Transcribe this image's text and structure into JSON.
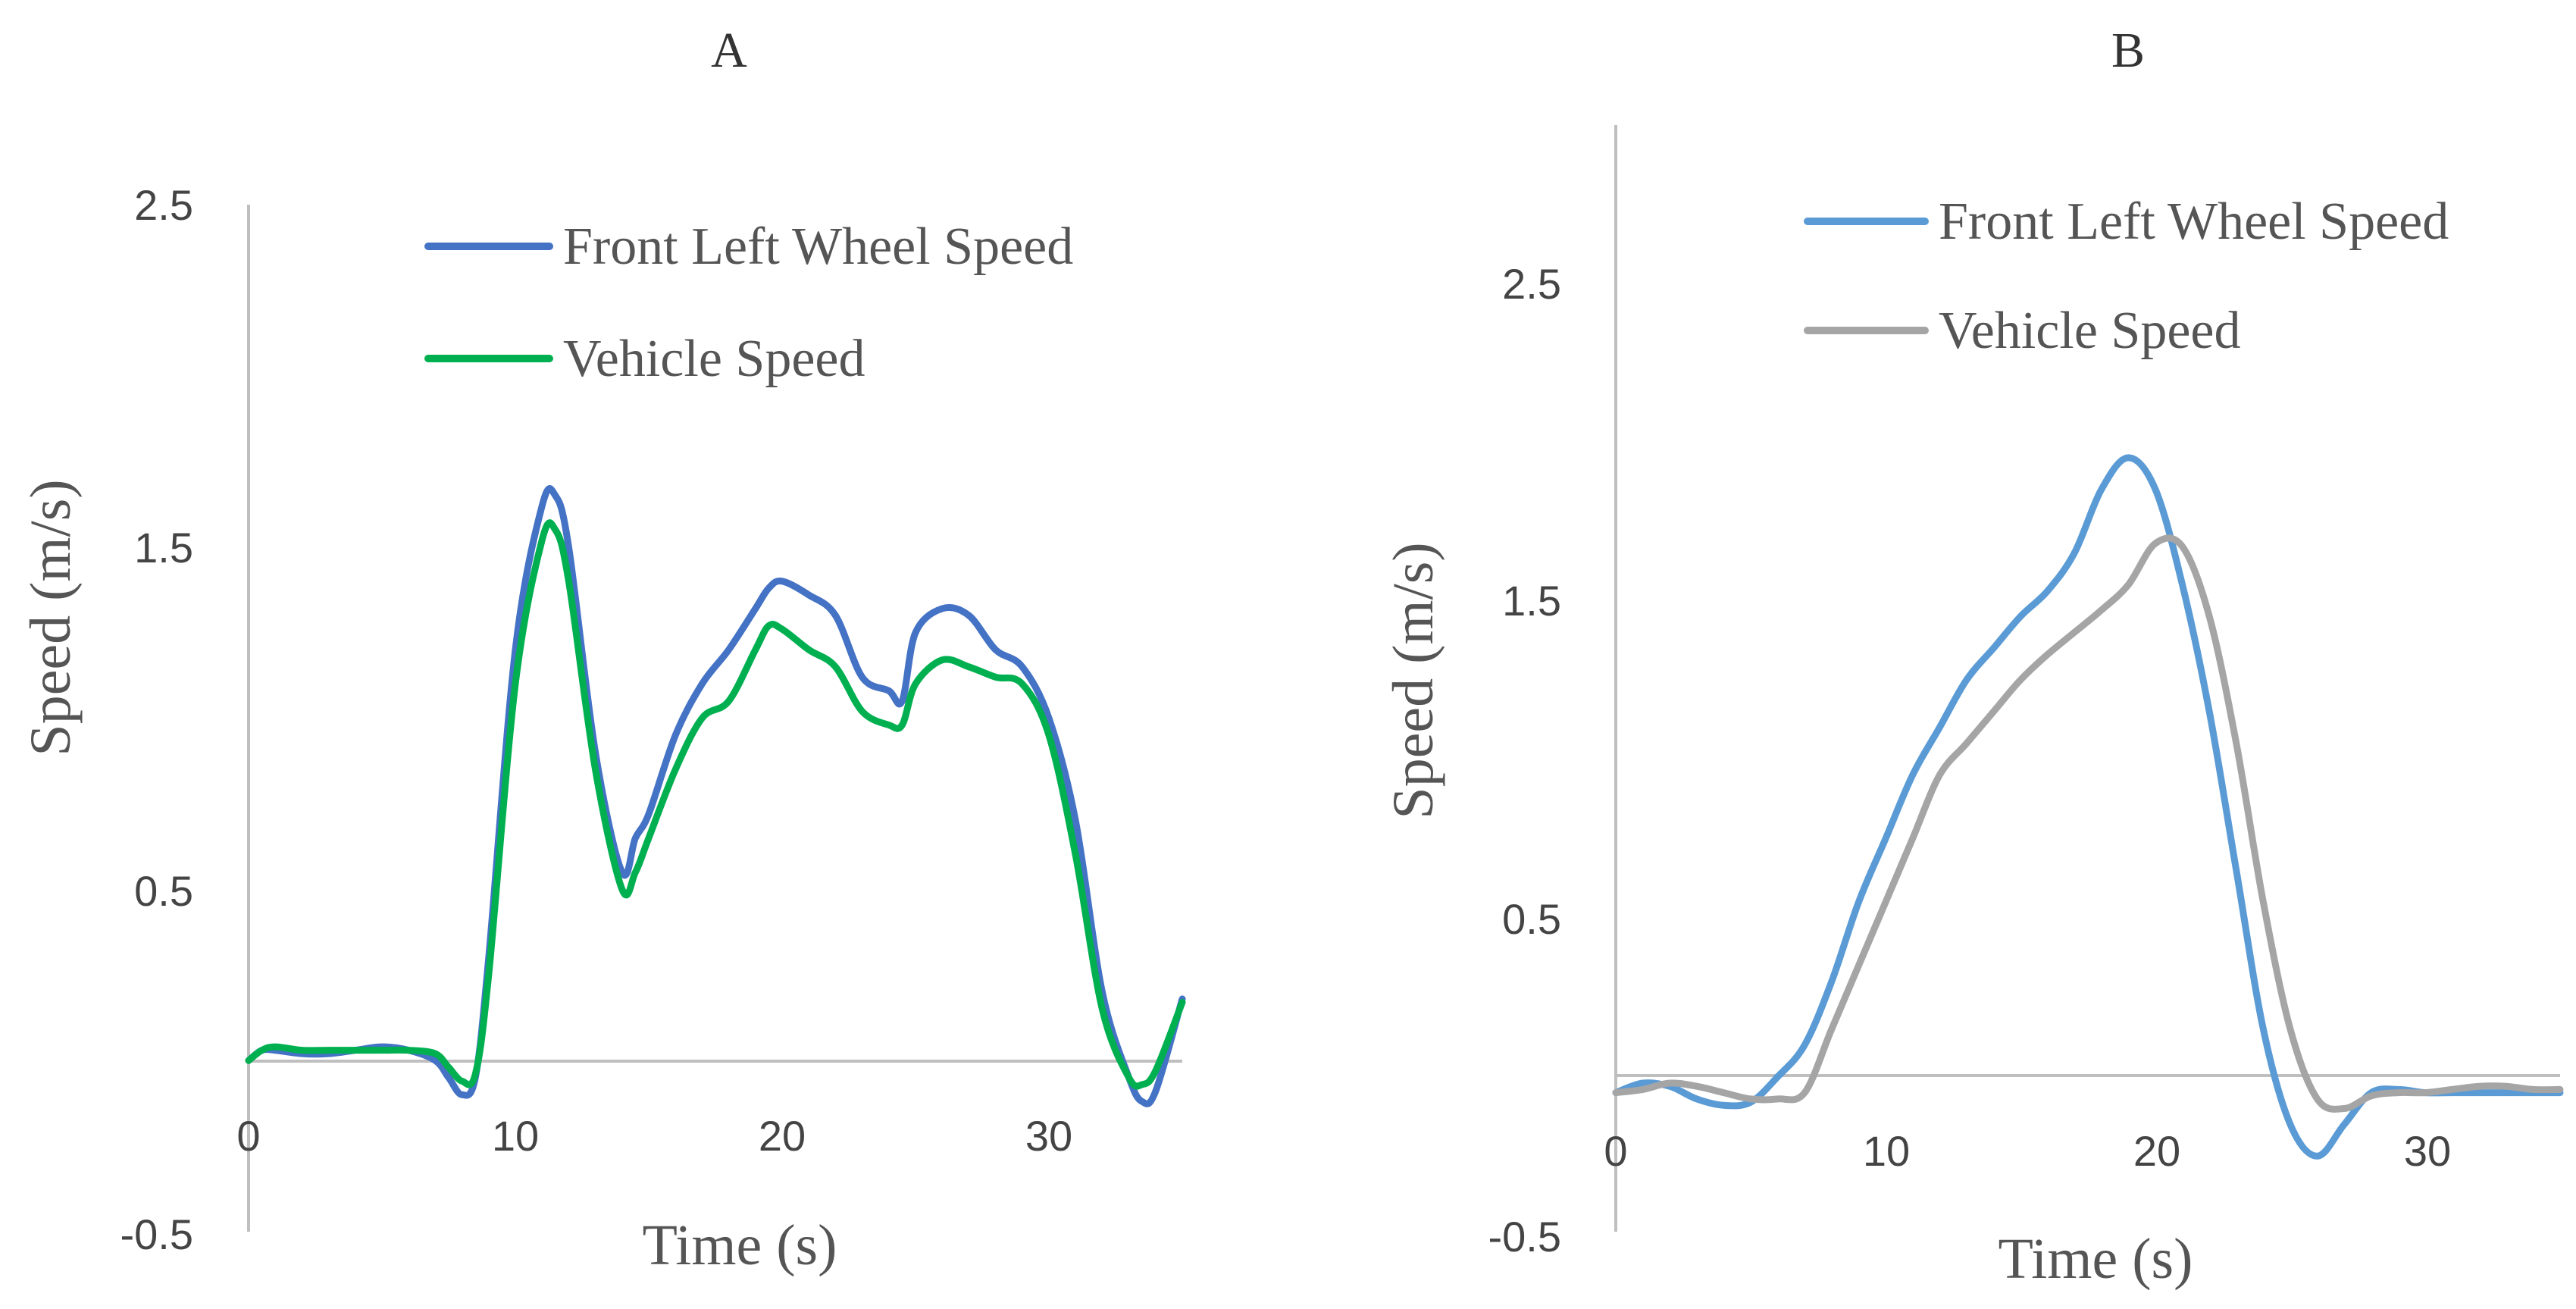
{
  "chart_data": [
    {
      "type": "line",
      "title": "A",
      "xlabel": "Time (s)",
      "ylabel": "Speed (m/s)",
      "xlim": [
        0,
        35
      ],
      "ylim": [
        -0.5,
        2.5
      ],
      "xticks": [
        "0",
        "10",
        "20",
        "30"
      ],
      "yticks": [
        "2.5",
        "1.5",
        "0.5",
        "-0.5"
      ],
      "legend_position": "top-center",
      "series": [
        {
          "name": "Front Left Wheel Speed",
          "color": "#4472C4",
          "x": [
            0,
            0.5,
            1,
            2,
            3,
            4,
            5,
            6,
            7,
            7.5,
            8,
            8.5,
            9,
            10,
            11,
            11.5,
            12,
            13,
            14,
            14.5,
            15,
            16,
            17,
            18,
            19,
            19.5,
            20,
            21,
            22,
            23,
            24,
            24.5,
            25,
            26,
            27,
            28,
            29,
            30,
            31,
            32,
            33,
            33.5,
            34,
            35
          ],
          "values": [
            0.0,
            0.03,
            0.03,
            0.02,
            0.02,
            0.03,
            0.04,
            0.03,
            0.0,
            -0.05,
            -0.1,
            -0.05,
            0.3,
            1.2,
            1.62,
            1.65,
            1.5,
            0.9,
            0.55,
            0.65,
            0.72,
            0.95,
            1.1,
            1.2,
            1.32,
            1.38,
            1.4,
            1.36,
            1.3,
            1.12,
            1.08,
            1.05,
            1.25,
            1.32,
            1.3,
            1.2,
            1.15,
            1.0,
            0.7,
            0.2,
            -0.05,
            -0.12,
            -0.09,
            0.18
          ]
        },
        {
          "name": "Vehicle Speed",
          "color": "#00B050",
          "x": [
            0,
            0.5,
            1,
            2,
            3,
            4,
            5,
            6,
            7,
            7.5,
            8,
            8.5,
            9,
            10,
            11,
            11.5,
            12,
            13,
            14,
            14.5,
            15,
            16,
            17,
            18,
            19,
            19.5,
            20,
            21,
            22,
            23,
            24,
            24.5,
            25,
            26,
            27,
            28,
            29,
            30,
            31,
            32,
            33,
            33.5,
            34,
            35
          ],
          "values": [
            0.0,
            0.03,
            0.04,
            0.03,
            0.03,
            0.03,
            0.03,
            0.03,
            0.02,
            -0.02,
            -0.06,
            -0.04,
            0.25,
            1.1,
            1.52,
            1.55,
            1.4,
            0.85,
            0.5,
            0.55,
            0.65,
            0.85,
            1.0,
            1.05,
            1.2,
            1.27,
            1.26,
            1.2,
            1.15,
            1.02,
            0.98,
            0.98,
            1.1,
            1.17,
            1.15,
            1.12,
            1.1,
            0.95,
            0.6,
            0.15,
            -0.05,
            -0.07,
            -0.03,
            0.17
          ]
        }
      ]
    },
    {
      "type": "line",
      "title": "B",
      "xlabel": "Time (s)",
      "ylabel": "Speed (m/s)",
      "xlim": [
        0,
        35
      ],
      "ylim": [
        -0.5,
        3.0
      ],
      "xticks": [
        "0",
        "10",
        "20",
        "30"
      ],
      "yticks": [
        "2.5",
        "1.5",
        "0.5",
        "-0.5"
      ],
      "legend_position": "top-center",
      "series": [
        {
          "name": "Front Left Wheel Speed",
          "color": "#5B9BD5",
          "x": [
            0,
            1,
            2,
            3,
            4,
            5,
            6,
            7,
            8,
            9,
            10,
            11,
            12,
            13,
            14,
            15,
            16,
            17,
            18,
            19,
            20,
            21,
            22,
            23,
            24,
            25,
            26,
            27,
            28,
            29,
            30,
            31,
            32,
            33,
            34,
            35
          ],
          "values": [
            0.0,
            0.03,
            0.02,
            -0.02,
            -0.04,
            -0.03,
            0.05,
            0.15,
            0.35,
            0.6,
            0.8,
            1.0,
            1.15,
            1.3,
            1.4,
            1.5,
            1.58,
            1.7,
            1.9,
            2.0,
            1.9,
            1.6,
            1.2,
            0.7,
            0.2,
            -0.1,
            -0.2,
            -0.1,
            0.0,
            0.01,
            0.0,
            0.0,
            0.0,
            0.0,
            0.0,
            0.0
          ]
        },
        {
          "name": "Vehicle Speed",
          "color": "#A5A5A5",
          "x": [
            0,
            1,
            2,
            3,
            4,
            5,
            6,
            7,
            8,
            9,
            10,
            11,
            12,
            13,
            14,
            15,
            16,
            17,
            18,
            19,
            20,
            21,
            22,
            23,
            24,
            25,
            26,
            27,
            28,
            29,
            30,
            31,
            32,
            33,
            34,
            35
          ],
          "values": [
            0.0,
            0.01,
            0.03,
            0.02,
            0.0,
            -0.02,
            -0.02,
            0.0,
            0.2,
            0.4,
            0.6,
            0.8,
            1.0,
            1.1,
            1.2,
            1.3,
            1.38,
            1.45,
            1.52,
            1.6,
            1.73,
            1.72,
            1.5,
            1.1,
            0.6,
            0.2,
            -0.02,
            -0.05,
            -0.01,
            0.0,
            0.0,
            0.01,
            0.02,
            0.02,
            0.01,
            0.01
          ]
        }
      ]
    }
  ]
}
